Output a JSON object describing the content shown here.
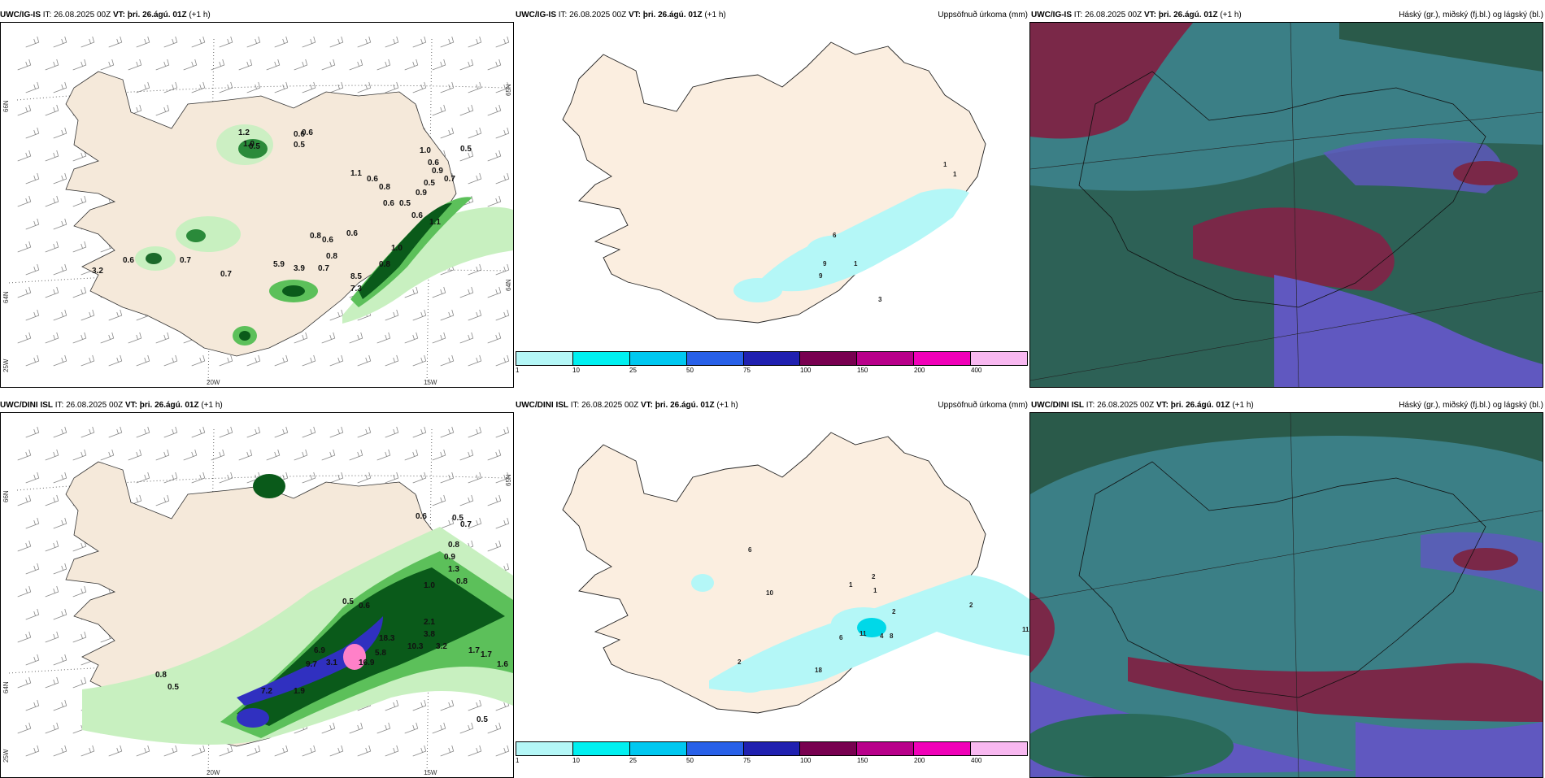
{
  "rows": [
    {
      "model": "UWC/IG-IS",
      "it_label": "IT:",
      "it_value": "26.08.2025 00Z",
      "vt_label": "VT:",
      "vt_value": "þri. 26.ágú. 01Z",
      "lead": "(+1 h)",
      "precip_title": "Uppsöfnuð úrkoma (mm)",
      "cloud_title": "Háský (gr.), miðský (fj.bl.) og lágský (bl.)",
      "lon_labels": [
        "20W",
        "15W"
      ],
      "lat_labels": [
        "66N",
        "64N",
        "25W",
        "65N",
        "64N"
      ],
      "wind_precip_values": [
        "1.2",
        "1.0",
        "0.5",
        "0.6",
        "0.6",
        "0.5",
        "1.0",
        "0.5",
        "0.6",
        "0.9",
        "0.5",
        "0.7",
        "0.6",
        "0.5",
        "0.6",
        "1.1",
        "0.8",
        "0.6",
        "0.6",
        "1.0",
        "0.8",
        "8.5",
        "7.3",
        "3.9",
        "5.9",
        "0.8",
        "0.7",
        "0.7",
        "0.6",
        "3.2",
        "0.9",
        "1.1",
        "0.6",
        "0.8",
        "0.7"
      ],
      "accum_values": [
        "1",
        "1",
        "6",
        "9",
        "9",
        "1",
        "3"
      ]
    },
    {
      "model": "UWC/DINI ISL",
      "it_label": "IT:",
      "it_value": "26.08.2025 00Z",
      "vt_label": "VT:",
      "vt_value": "þri. 26.ágú. 01Z",
      "lead": "(+1 h)",
      "precip_title": "Uppsöfnuð úrkoma (mm)",
      "cloud_title": "Háský (gr.), miðský (fj.bl.) og lágský (bl.)",
      "lon_labels": [
        "20W",
        "15W"
      ],
      "lat_labels": [
        "66N",
        "64N",
        "25W",
        "65N"
      ],
      "wind_precip_values": [
        "0.6",
        "0.5",
        "0.7",
        "0.8",
        "0.9",
        "1.3",
        "0.8",
        "1.0",
        "0.5",
        "0.6",
        "2.1",
        "3.8",
        "3.2",
        "10.3",
        "18.3",
        "6.9",
        "5.8",
        "3.1",
        "9.7",
        "16.9",
        "7.2",
        "1.9",
        "0.8",
        "0.5",
        "1.7",
        "1.7",
        "1.6",
        "0.5"
      ],
      "accum_values": [
        "1",
        "2",
        "1",
        "6",
        "10",
        "2",
        "2",
        "11",
        "11",
        "4",
        "6",
        "2",
        "18",
        "8"
      ]
    }
  ],
  "colorbar": {
    "ticks": [
      "1",
      "10",
      "25",
      "50",
      "75",
      "100",
      "150",
      "200",
      "400"
    ],
    "colors": [
      "#b4f7f7",
      "#00f0f0",
      "#00c8f0",
      "#2860e8",
      "#2020b0",
      "#780050",
      "#b8008a",
      "#f000b8",
      "#f8b8f0"
    ]
  },
  "colors": {
    "land": "#f5e9da",
    "precip_light": "#c8f0c0",
    "precip_mid": "#5cc05a",
    "precip_dark": "#0a5a1a",
    "cloud_high": "#2a5a4a",
    "cloud_mid": "#3b7f86",
    "cloud_low": "#7a2848",
    "cloud_purple": "#6058c0"
  }
}
